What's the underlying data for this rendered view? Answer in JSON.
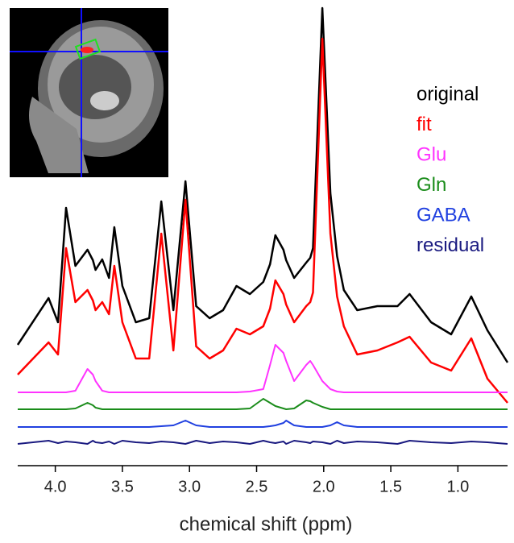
{
  "chart_data": {
    "type": "line",
    "xlabel": "chemical shift (ppm)",
    "x": [
      4.28,
      4.05,
      3.98,
      3.92,
      3.85,
      3.76,
      3.72,
      3.7,
      3.65,
      3.6,
      3.56,
      3.5,
      3.4,
      3.3,
      3.21,
      3.12,
      3.03,
      2.95,
      2.85,
      2.75,
      2.65,
      2.55,
      2.45,
      2.4,
      2.36,
      2.3,
      2.28,
      2.22,
      2.13,
      2.1,
      2.08,
      2.01,
      1.95,
      1.9,
      1.85,
      1.75,
      1.6,
      1.45,
      1.36,
      1.2,
      1.05,
      0.9,
      0.78,
      0.63
    ],
    "series": [
      {
        "name": "original",
        "color": "#000000",
        "values": [
          150,
          208,
          178,
          320,
          248,
          268,
          255,
          243,
          256,
          233,
          296,
          223,
          178,
          183,
          328,
          193,
          353,
          198,
          183,
          193,
          223,
          213,
          228,
          250,
          286,
          268,
          255,
          233,
          252,
          258,
          270,
          568,
          338,
          260,
          218,
          193,
          198,
          198,
          213,
          178,
          163,
          210,
          168,
          128
        ]
      },
      {
        "name": "fit",
        "color": "#ff0000",
        "values": [
          113,
          153,
          138,
          270,
          203,
          218,
          205,
          193,
          203,
          188,
          248,
          178,
          133,
          133,
          288,
          143,
          330,
          148,
          133,
          143,
          170,
          163,
          173,
          195,
          230,
          213,
          200,
          178,
          198,
          203,
          215,
          530,
          288,
          210,
          173,
          138,
          143,
          153,
          160,
          128,
          118,
          158,
          108,
          78
        ]
      },
      {
        "name": "Glu",
        "color": "#ff33ff",
        "values": [
          91,
          91,
          91,
          91,
          93,
          120,
          113,
          105,
          93,
          91,
          91,
          91,
          91,
          91,
          91,
          91,
          91,
          91,
          91,
          91,
          91,
          92,
          95,
          125,
          150,
          140,
          130,
          105,
          125,
          130,
          125,
          105,
          95,
          92,
          91,
          91,
          91,
          91,
          91,
          91,
          91,
          91,
          91,
          91
        ]
      },
      {
        "name": "Gln",
        "color": "#1a8c1a",
        "values": [
          70,
          70,
          70,
          70,
          71,
          78,
          75,
          72,
          70,
          70,
          70,
          70,
          70,
          70,
          70,
          70,
          70,
          70,
          70,
          70,
          70,
          71,
          83,
          78,
          74,
          71,
          70,
          71,
          81,
          80,
          78,
          73,
          70,
          70,
          70,
          70,
          70,
          70,
          70,
          70,
          70,
          70,
          70,
          70
        ]
      },
      {
        "name": "GABA",
        "color": "#2040e0",
        "values": [
          48,
          48,
          48,
          48,
          48,
          48,
          48,
          48,
          48,
          48,
          48,
          48,
          48,
          48,
          49,
          50,
          56,
          50,
          48,
          48,
          48,
          48,
          48,
          49,
          50,
          53,
          56,
          50,
          48,
          48,
          48,
          48,
          50,
          54,
          50,
          48,
          48,
          48,
          48,
          48,
          48,
          48,
          48,
          48
        ]
      },
      {
        "name": "residual",
        "color": "#1a1a80",
        "values": [
          27,
          31,
          28,
          30,
          29,
          27,
          31,
          29,
          28,
          30,
          27,
          31,
          29,
          28,
          30,
          29,
          27,
          31,
          28,
          30,
          29,
          27,
          31,
          29,
          28,
          30,
          27,
          31,
          29,
          28,
          30,
          29,
          27,
          31,
          28,
          30,
          29,
          27,
          31,
          29,
          28,
          30,
          29,
          27
        ]
      }
    ],
    "xlim": [
      4.28,
      0.63
    ],
    "xticks": [
      {
        "value": 4,
        "label": "4.0"
      },
      3.5,
      {
        "value": 3,
        "label": "3.0"
      },
      2.5,
      {
        "value": 2,
        "label": "2.0"
      },
      1.5,
      {
        "value": 1,
        "label": "1.0"
      }
    ],
    "ylim": [
      0,
      570
    ]
  }
}
